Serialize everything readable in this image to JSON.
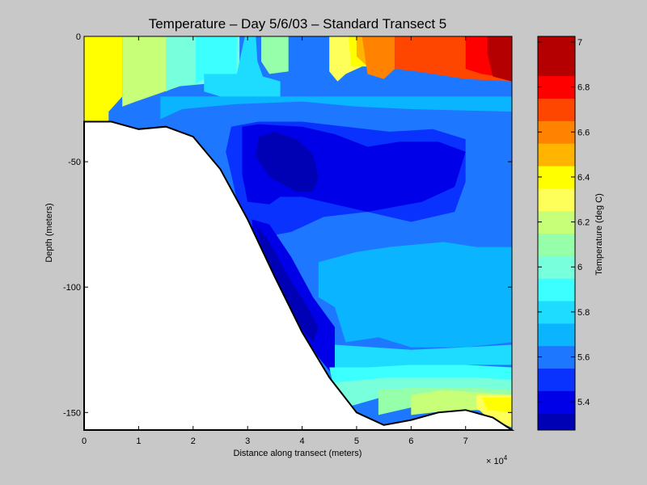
{
  "chart_data": {
    "type": "heatmap",
    "subtype": "filled-contour",
    "title": "Temperature – Day 5/6/03 – Standard Transect 5",
    "xlabel": "Distance along transect (meters)",
    "ylabel": "Depth (meters)",
    "x_multiplier_label": "× 10",
    "x_multiplier_exponent": "4",
    "x_ticks": [
      0,
      1,
      2,
      3,
      4,
      5,
      6,
      7
    ],
    "x_tick_labels": [
      "0",
      "1",
      "2",
      "3",
      "4",
      "5",
      "6",
      "7"
    ],
    "y_ticks": [
      0,
      -50,
      -100,
      -150
    ],
    "y_tick_labels": [
      "0",
      "-50",
      "-100",
      "-150"
    ],
    "xlim": [
      0,
      78500
    ],
    "ylim": [
      -157,
      0
    ],
    "colorbar": {
      "label": "Temperature (deg C)",
      "range": [
        5.275,
        7.025
      ],
      "ticks": [
        5.4,
        5.6,
        5.8,
        6,
        6.2,
        6.4,
        6.6,
        6.8,
        7
      ],
      "tick_labels": [
        "5.4",
        "5.6",
        "5.8",
        "6",
        "6.2",
        "6.4",
        "6.6",
        "6.8",
        "7"
      ],
      "levels": [
        {
          "value": 5.35,
          "color": "#0000b4"
        },
        {
          "value": 5.45,
          "color": "#0000e8"
        },
        {
          "value": 5.55,
          "color": "#0a32ff"
        },
        {
          "value": 5.65,
          "color": "#1e78ff"
        },
        {
          "value": 5.75,
          "color": "#0ab4ff"
        },
        {
          "value": 5.85,
          "color": "#1edcff"
        },
        {
          "value": 5.95,
          "color": "#3cffff"
        },
        {
          "value": 6.05,
          "color": "#78ffdc"
        },
        {
          "value": 6.15,
          "color": "#96ffaa"
        },
        {
          "value": 6.25,
          "color": "#c8ff78"
        },
        {
          "value": 6.35,
          "color": "#ffff5a"
        },
        {
          "value": 6.45,
          "color": "#ffff00"
        },
        {
          "value": 6.55,
          "color": "#ffb400"
        },
        {
          "value": 6.65,
          "color": "#ff8200"
        },
        {
          "value": 6.75,
          "color": "#ff4600"
        },
        {
          "value": 6.85,
          "color": "#ff0000"
        },
        {
          "value": 6.95,
          "color": "#b40000"
        }
      ]
    },
    "bathymetry": {
      "x": [
        0,
        5000,
        10000,
        15000,
        20000,
        25000,
        30000,
        35000,
        40000,
        45000,
        50000,
        55000,
        60000,
        65000,
        70000,
        75000,
        78500
      ],
      "depth": [
        -34,
        -34,
        -37,
        -36,
        -40,
        -53,
        -73,
        -96,
        -118,
        -136,
        -150,
        -155,
        -153,
        -150,
        -149,
        -152,
        -157
      ]
    },
    "field_regions": [
      {
        "temp": 6.45,
        "points": [
          [
            0,
            0
          ],
          [
            7000,
            0
          ],
          [
            7000,
            -11
          ],
          [
            7000,
            -24
          ],
          [
            4500,
            -30
          ],
          [
            4500,
            -34
          ],
          [
            0,
            -34
          ]
        ]
      },
      {
        "temp": 6.25,
        "points": [
          [
            7000,
            0
          ],
          [
            20000,
            0
          ],
          [
            20000,
            -18
          ],
          [
            13500,
            -23
          ],
          [
            9500,
            -26
          ],
          [
            7000,
            -28
          ]
        ]
      },
      {
        "temp": 6.05,
        "points": [
          [
            15000,
            0
          ],
          [
            28500,
            0
          ],
          [
            28500,
            -17
          ],
          [
            22000,
            -19
          ],
          [
            17000,
            -20
          ],
          [
            15000,
            -22
          ]
        ]
      },
      {
        "temp": 5.95,
        "points": [
          [
            20500,
            0
          ],
          [
            28000,
            0
          ],
          [
            28000,
            -15
          ],
          [
            22000,
            -17
          ],
          [
            20500,
            -19
          ]
        ]
      },
      {
        "temp": 5.85,
        "points": [
          [
            29500,
            0
          ],
          [
            31500,
            0
          ],
          [
            31800,
            -10
          ],
          [
            32800,
            -16
          ],
          [
            34500,
            -17
          ],
          [
            36000,
            -18
          ],
          [
            36000,
            -24
          ],
          [
            28000,
            -26
          ],
          [
            22000,
            -22
          ],
          [
            22000,
            -15
          ],
          [
            28000,
            -15
          ]
        ]
      },
      {
        "temp": 6.15,
        "points": [
          [
            32500,
            0
          ],
          [
            37500,
            0
          ],
          [
            37500,
            -14
          ],
          [
            34000,
            -15
          ],
          [
            32500,
            -10
          ]
        ]
      },
      {
        "temp": 6.35,
        "points": [
          [
            45000,
            0
          ],
          [
            51000,
            0
          ],
          [
            51000,
            -12
          ],
          [
            48000,
            -15
          ],
          [
            46500,
            -18
          ],
          [
            45000,
            -14
          ]
        ]
      },
      {
        "temp": 6.45,
        "points": [
          [
            48500,
            0
          ],
          [
            52000,
            0
          ],
          [
            52000,
            -12
          ],
          [
            49000,
            -12
          ]
        ]
      },
      {
        "temp": 6.55,
        "points": [
          [
            50000,
            0
          ],
          [
            57000,
            0
          ],
          [
            57000,
            -10
          ],
          [
            52000,
            -12
          ],
          [
            50000,
            -8
          ]
        ]
      },
      {
        "temp": 6.65,
        "points": [
          [
            51000,
            0
          ],
          [
            57000,
            0
          ],
          [
            57000,
            -13
          ],
          [
            55000,
            -17
          ],
          [
            52000,
            -15
          ]
        ]
      },
      {
        "temp": 6.75,
        "points": [
          [
            57000,
            0
          ],
          [
            78500,
            0
          ],
          [
            78500,
            -18
          ],
          [
            70000,
            -17
          ],
          [
            61000,
            -14
          ],
          [
            57000,
            -13
          ]
        ]
      },
      {
        "temp": 6.85,
        "points": [
          [
            70000,
            0
          ],
          [
            78500,
            0
          ],
          [
            78500,
            -17
          ],
          [
            73000,
            -15
          ],
          [
            70000,
            -13
          ]
        ]
      },
      {
        "temp": 6.95,
        "points": [
          [
            74000,
            0
          ],
          [
            78500,
            0
          ],
          [
            78500,
            -18
          ],
          [
            75000,
            -16
          ],
          [
            74000,
            -7
          ]
        ]
      },
      {
        "temp": 5.75,
        "points": [
          [
            14000,
            -24
          ],
          [
            78500,
            -24
          ],
          [
            78500,
            -30
          ],
          [
            60000,
            -29
          ],
          [
            50000,
            -28
          ],
          [
            40000,
            -26
          ],
          [
            28000,
            -27
          ],
          [
            18000,
            -29
          ],
          [
            14000,
            -33
          ]
        ]
      },
      {
        "temp": 5.65,
        "points": [
          [
            18000,
            -32
          ],
          [
            27000,
            -30
          ],
          [
            40000,
            -27
          ],
          [
            52000,
            -30
          ],
          [
            62000,
            -30
          ],
          [
            70000,
            -31
          ],
          [
            72000,
            -34
          ],
          [
            76000,
            -36
          ],
          [
            78500,
            -38
          ],
          [
            78500,
            -47
          ],
          [
            72000,
            -44
          ],
          [
            64000,
            -40
          ],
          [
            56000,
            -40
          ],
          [
            48000,
            -37
          ],
          [
            40000,
            -34
          ],
          [
            30000,
            -36
          ],
          [
            26000,
            -42
          ],
          [
            25000,
            -50
          ]
        ]
      },
      {
        "temp": 5.55,
        "points": [
          [
            27000,
            -36
          ],
          [
            32000,
            -34
          ],
          [
            40000,
            -34
          ],
          [
            48000,
            -36
          ],
          [
            56000,
            -38
          ],
          [
            64000,
            -37
          ],
          [
            70000,
            -41
          ],
          [
            70000,
            -58
          ],
          [
            68000,
            -70
          ],
          [
            60000,
            -74
          ],
          [
            52000,
            -70
          ],
          [
            44000,
            -72
          ],
          [
            38000,
            -78
          ],
          [
            33000,
            -80
          ],
          [
            30000,
            -82
          ],
          [
            28000,
            -65
          ],
          [
            27000,
            -55
          ],
          [
            26000,
            -46
          ]
        ]
      },
      {
        "temp": 5.45,
        "points": [
          [
            29000,
            -36
          ],
          [
            32000,
            -35
          ],
          [
            40000,
            -36
          ],
          [
            46000,
            -39
          ],
          [
            52000,
            -44
          ],
          [
            58000,
            -42
          ],
          [
            65000,
            -42
          ],
          [
            70000,
            -46
          ],
          [
            68000,
            -60
          ],
          [
            62000,
            -66
          ],
          [
            52000,
            -70
          ],
          [
            44000,
            -66
          ],
          [
            40000,
            -64
          ],
          [
            36000,
            -64
          ],
          [
            34000,
            -67
          ],
          [
            30000,
            -66
          ],
          [
            29000,
            -55
          ]
        ]
      },
      {
        "temp": 5.35,
        "points": [
          [
            32000,
            -40
          ],
          [
            35000,
            -38
          ],
          [
            39000,
            -41
          ],
          [
            42000,
            -47
          ],
          [
            43000,
            -56
          ],
          [
            42000,
            -62
          ],
          [
            39000,
            -62
          ],
          [
            34000,
            -56
          ],
          [
            31500,
            -48
          ]
        ]
      },
      {
        "temp": 5.45,
        "points": [
          [
            30800,
            -73
          ],
          [
            34000,
            -75
          ],
          [
            38000,
            -88
          ],
          [
            42000,
            -104
          ],
          [
            46000,
            -116
          ],
          [
            46000,
            -136
          ],
          [
            43000,
            -128
          ],
          [
            40000,
            -118
          ],
          [
            37000,
            -104
          ],
          [
            33000,
            -90
          ],
          [
            31000,
            -80
          ]
        ]
      },
      {
        "temp": 5.35,
        "points": [
          [
            31500,
            -75
          ],
          [
            34000,
            -82
          ],
          [
            37000,
            -94
          ],
          [
            41000,
            -108
          ],
          [
            43000,
            -116
          ],
          [
            42000,
            -122
          ],
          [
            39000,
            -114
          ],
          [
            36000,
            -102
          ],
          [
            33000,
            -88
          ]
        ]
      },
      {
        "temp": 5.75,
        "points": [
          [
            43000,
            -90
          ],
          [
            50000,
            -86
          ],
          [
            56000,
            -84
          ],
          [
            66000,
            -82
          ],
          [
            72000,
            -84
          ],
          [
            78500,
            -84
          ],
          [
            78500,
            -122
          ],
          [
            70000,
            -124
          ],
          [
            60000,
            -124
          ],
          [
            54000,
            -120
          ],
          [
            48000,
            -122
          ],
          [
            46000,
            -108
          ],
          [
            43000,
            -104
          ]
        ]
      },
      {
        "temp": 5.85,
        "points": [
          [
            46000,
            -123
          ],
          [
            60000,
            -125
          ],
          [
            70000,
            -124
          ],
          [
            78500,
            -123
          ],
          [
            78500,
            -131
          ],
          [
            70000,
            -131
          ],
          [
            60000,
            -131
          ],
          [
            52000,
            -133
          ],
          [
            46000,
            -136
          ]
        ]
      },
      {
        "temp": 5.95,
        "points": [
          [
            45000,
            -132
          ],
          [
            52000,
            -132
          ],
          [
            60000,
            -131
          ],
          [
            70000,
            -131
          ],
          [
            78500,
            -132
          ],
          [
            78500,
            -137
          ],
          [
            70000,
            -138
          ],
          [
            60000,
            -139
          ],
          [
            52000,
            -140
          ],
          [
            46000,
            -142
          ]
        ]
      },
      {
        "temp": 6.05,
        "points": [
          [
            46000,
            -138
          ],
          [
            56000,
            -136
          ],
          [
            64000,
            -136
          ],
          [
            72000,
            -136
          ],
          [
            78500,
            -137
          ],
          [
            78500,
            -141
          ],
          [
            64000,
            -142
          ],
          [
            56000,
            -143
          ],
          [
            48000,
            -148
          ]
        ]
      },
      {
        "temp": 6.15,
        "points": [
          [
            54000,
            -141
          ],
          [
            62000,
            -140
          ],
          [
            70000,
            -140
          ],
          [
            78500,
            -141
          ],
          [
            78500,
            -146
          ],
          [
            72000,
            -145
          ],
          [
            62000,
            -147
          ],
          [
            54000,
            -151
          ]
        ]
      },
      {
        "temp": 6.25,
        "points": [
          [
            60000,
            -143
          ],
          [
            66000,
            -141
          ],
          [
            72000,
            -142
          ],
          [
            78500,
            -143
          ],
          [
            78500,
            -151
          ],
          [
            72000,
            -149
          ],
          [
            64000,
            -150
          ],
          [
            60000,
            -151
          ]
        ]
      },
      {
        "temp": 6.35,
        "points": [
          [
            72000,
            -143
          ],
          [
            78500,
            -143
          ],
          [
            78500,
            -156
          ],
          [
            74000,
            -152
          ],
          [
            72000,
            -148
          ]
        ]
      },
      {
        "temp": 6.45,
        "points": [
          [
            73000,
            -144
          ],
          [
            78500,
            -144
          ],
          [
            78500,
            -150
          ],
          [
            74000,
            -149
          ]
        ]
      }
    ]
  }
}
